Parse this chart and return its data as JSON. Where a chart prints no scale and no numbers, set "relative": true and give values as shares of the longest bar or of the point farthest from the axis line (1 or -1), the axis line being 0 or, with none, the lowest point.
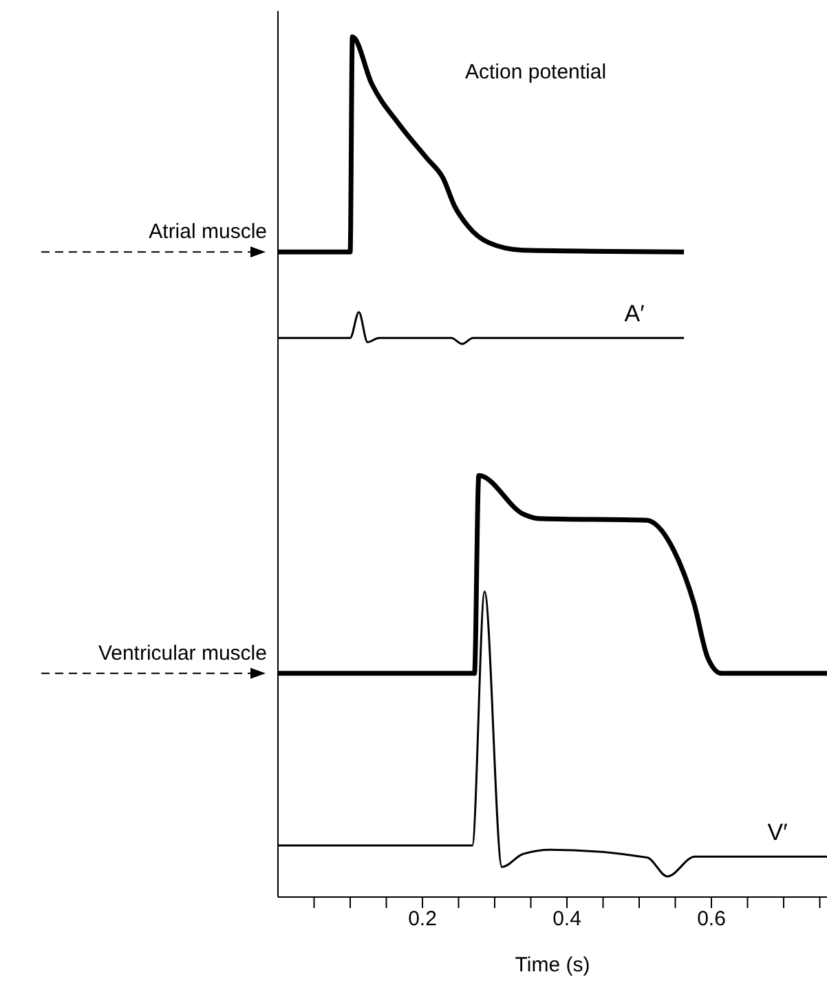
{
  "chart_data": {
    "type": "line",
    "relative": true,
    "xlabel": "Time (s)",
    "annotations": [
      "Action potential"
    ],
    "xlim": [
      0,
      0.76
    ],
    "xticks": [
      {
        "value": 0.05,
        "label": null
      },
      {
        "value": 0.1,
        "label": null
      },
      {
        "value": 0.15,
        "label": null
      },
      0.2,
      {
        "value": 0.25,
        "label": null
      },
      {
        "value": 0.3,
        "label": null
      },
      {
        "value": 0.35,
        "label": null
      },
      0.4,
      {
        "value": 0.45,
        "label": null
      },
      {
        "value": 0.5,
        "label": null
      },
      {
        "value": 0.55,
        "label": null
      },
      0.6,
      {
        "value": 0.65,
        "label": null
      },
      {
        "value": 0.7,
        "label": null
      },
      {
        "value": 0.75,
        "label": null
      }
    ],
    "tick_labels": "x",
    "grid": false,
    "legend": false,
    "marker": "none",
    "line_style": "solid",
    "series": [
      {
        "name": "Atrial muscle",
        "color": "#000000",
        "x": [
          0,
          0.1,
          0.103,
          0.13,
          0.168,
          0.206,
          0.229,
          0.244,
          0.263,
          0.291,
          0.339,
          0.562
        ],
        "values": [
          0.75,
          0.75,
          1.0,
          0.945,
          0.898,
          0.859,
          0.835,
          0.804,
          0.78,
          0.761,
          0.752,
          0.75
        ]
      },
      {
        "name": "A′",
        "color": "#000000",
        "x": [
          0,
          0.1,
          0.112,
          0.124,
          0.14,
          0.24,
          0.255,
          0.27,
          0.562
        ],
        "values": [
          0.65,
          0.65,
          0.68,
          0.645,
          0.65,
          0.65,
          0.643,
          0.65,
          0.65
        ]
      },
      {
        "name": "Ventricular muscle",
        "color": "#000000",
        "x": [
          0,
          0.272,
          0.278,
          0.34,
          0.36,
          0.51,
          0.548,
          0.576,
          0.595,
          0.614,
          0.76
        ],
        "values": [
          0.26,
          0.26,
          0.49,
          0.445,
          0.44,
          0.438,
          0.403,
          0.341,
          0.278,
          0.26,
          0.26
        ]
      },
      {
        "name": "V′",
        "color": "#000000",
        "x": [
          0,
          0.269,
          0.286,
          0.31,
          0.339,
          0.377,
          0.511,
          0.539,
          0.577,
          0.76
        ],
        "values": [
          0.06,
          0.06,
          0.355,
          0.035,
          0.05,
          0.055,
          0.046,
          0.024,
          0.047,
          0.047
        ]
      }
    ]
  }
}
